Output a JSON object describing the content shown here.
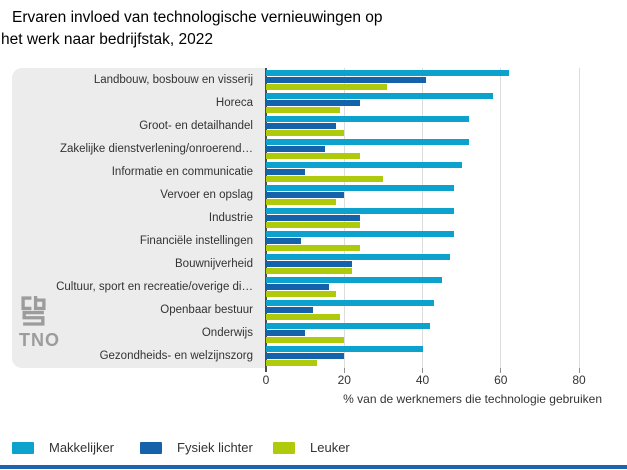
{
  "title": {
    "line1": "Ervaren invloed van technologische vernieuwingen op",
    "line2": "het werk naar bedrijfstak, 2022"
  },
  "chart_data": {
    "type": "bar",
    "orientation": "horizontal",
    "title": "Ervaren invloed van technologische vernieuwingen op het werk naar bedrijfstak, 2022",
    "categories": [
      "Landbouw, bosbouw en visserij",
      "Horeca",
      "Groot- en detailhandel",
      "Zakelijke dienstverlening/onroerend…",
      "Informatie en communicatie",
      "Vervoer en opslag",
      "Industrie",
      "Financiële instellingen",
      "Bouwnijverheid",
      "Cultuur, sport en recreatie/overige di…",
      "Openbaar bestuur",
      "Onderwijs",
      "Gezondheids- en welzijnszorg"
    ],
    "series": [
      {
        "name": "Makkelijker",
        "color": "#0DA2CE",
        "values": [
          62,
          58,
          52,
          52,
          50,
          48,
          48,
          48,
          47,
          45,
          43,
          42,
          40
        ]
      },
      {
        "name": "Fysiek lichter",
        "color": "#1362AA",
        "values": [
          41,
          24,
          18,
          15,
          10,
          20,
          24,
          9,
          22,
          16,
          12,
          10,
          20
        ]
      },
      {
        "name": "Leuker",
        "color": "#AFCA0B",
        "values": [
          31,
          19,
          20,
          24,
          30,
          18,
          24,
          24,
          22,
          18,
          19,
          20,
          13
        ]
      }
    ],
    "xlabel": "% van de werknemers die technologie gebruiken",
    "xlim": [
      0,
      80
    ],
    "xticks": [
      0,
      20,
      40,
      60,
      80
    ],
    "grid": true,
    "legend_position": "bottom"
  },
  "logos": {
    "cbs": "CBS",
    "tno": "TNO"
  },
  "style": {
    "panel_bg": "#ececec",
    "gridline_color": "#dcdcdc",
    "axis_color": "#4d4d4d",
    "text_color": "#333333",
    "bottom_rule_color": "#1E63AE"
  }
}
